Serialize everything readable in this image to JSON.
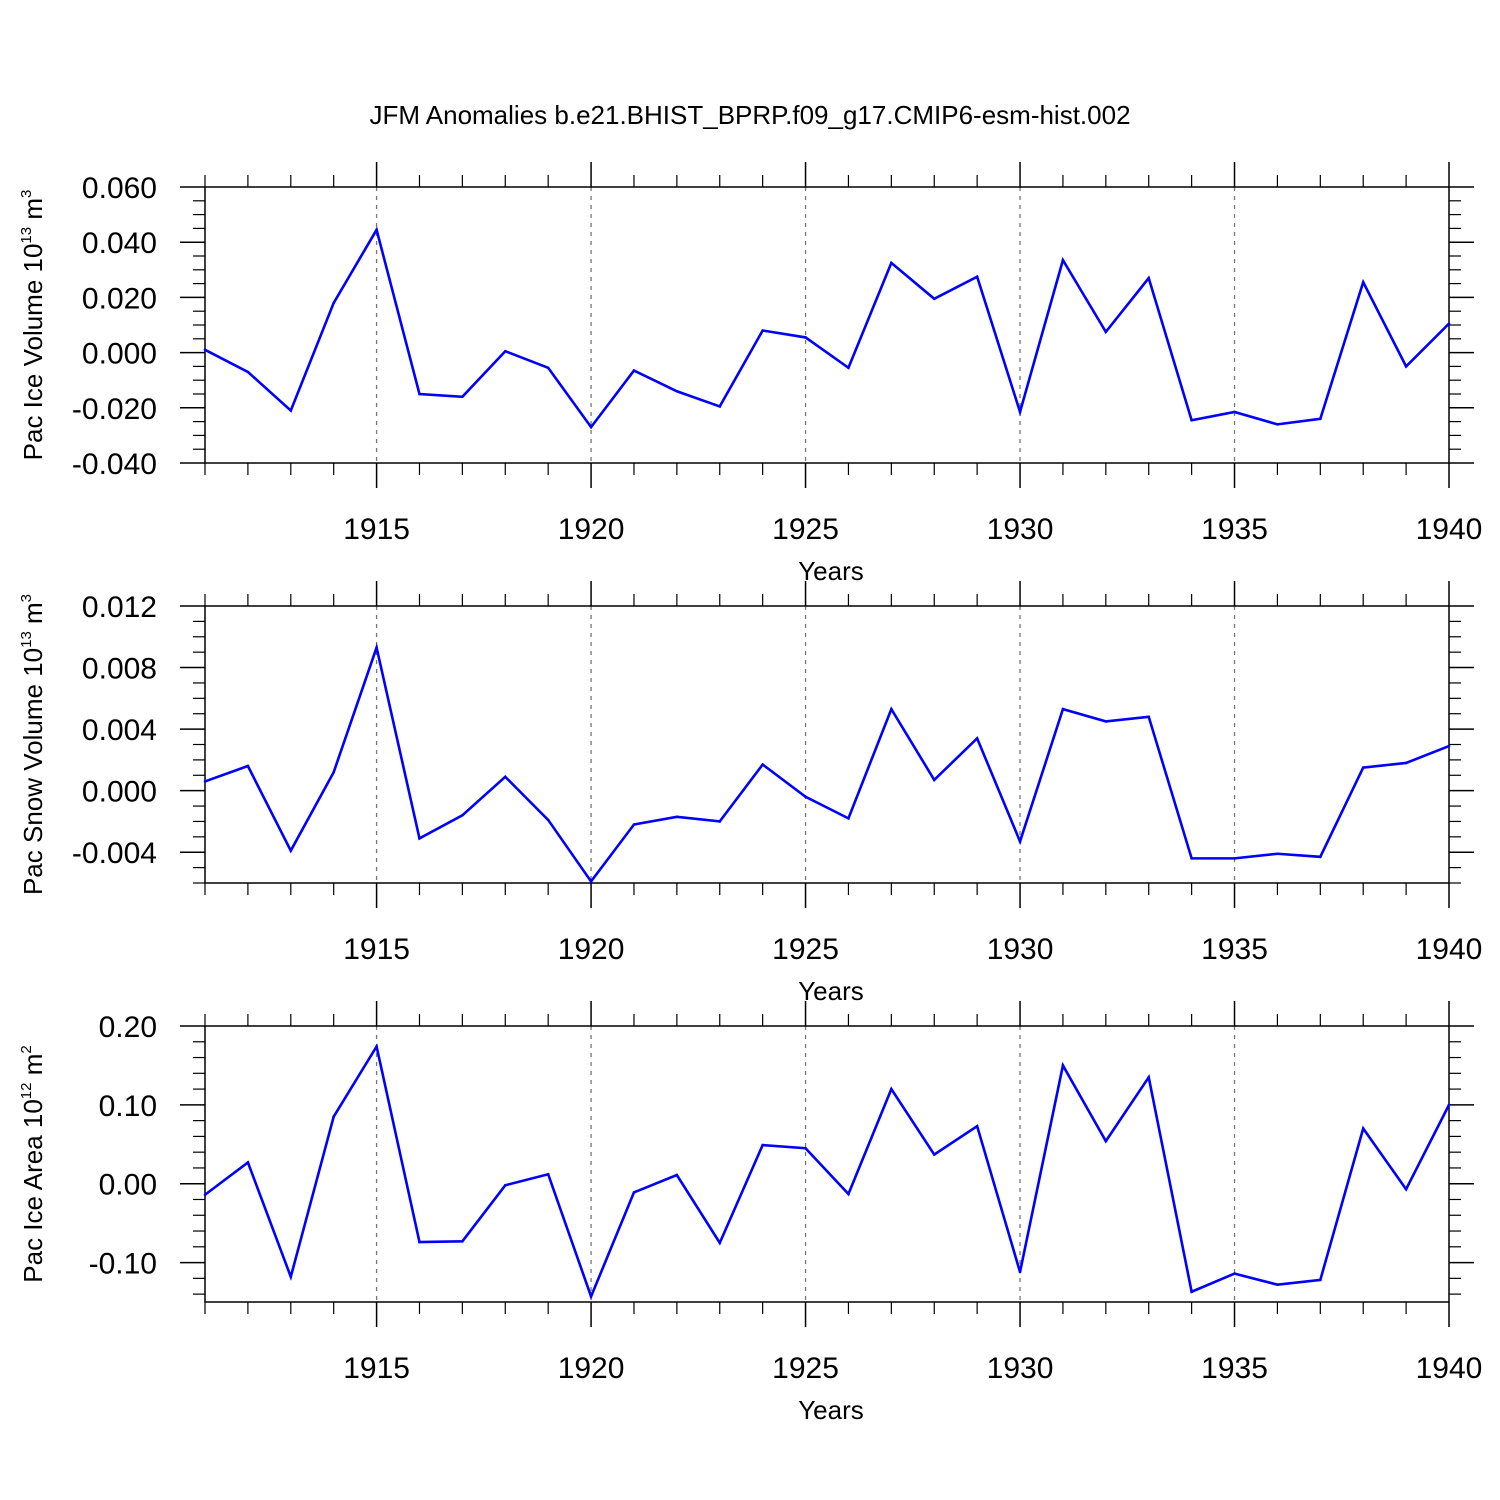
{
  "title": "JFM Anomalies b.e21.BHIST_BPRP.f09_g17.CMIP6-esm-hist.002",
  "colors": {
    "series": "#0000ff",
    "axis": "#000000",
    "grid": "#777777"
  },
  "chart_data": [
    {
      "type": "line",
      "title": "JFM Anomalies b.e21.BHIST_BPRP.f09_g17.CMIP6-esm-hist.002",
      "xlabel": "Years",
      "ylabel": "Pac Ice Volume 10",
      "ylabel_exp": "13",
      "ylabel_unit": "m",
      "ylabel_unit_exp": "3",
      "xlim": [
        1911,
        1940
      ],
      "ylim": [
        -0.04,
        0.06
      ],
      "x_ticks": [
        1915,
        1920,
        1925,
        1930,
        1935,
        1940
      ],
      "x_tick_labels": [
        "1915",
        "1920",
        "1925",
        "1930",
        "1935",
        "1940"
      ],
      "y_ticks": [
        -0.04,
        -0.02,
        0.0,
        0.02,
        0.04,
        0.06
      ],
      "y_tick_labels": [
        "-0.040",
        "-0.020",
        "0.000",
        "0.020",
        "0.040",
        "0.060"
      ],
      "y_minor_step": 0.005,
      "grid": "x-major dashed",
      "series": [
        {
          "name": "Pac Ice Volume",
          "x": [
            1911,
            1912,
            1913,
            1914,
            1915,
            1916,
            1917,
            1918,
            1919,
            1920,
            1921,
            1922,
            1923,
            1924,
            1925,
            1926,
            1927,
            1928,
            1929,
            1930,
            1931,
            1932,
            1933,
            1934,
            1935,
            1936,
            1937,
            1938,
            1939,
            1940
          ],
          "values": [
            0.001,
            -0.007,
            -0.021,
            0.018,
            0.0445,
            -0.015,
            -0.016,
            0.0005,
            -0.0055,
            -0.027,
            -0.0065,
            -0.014,
            -0.0195,
            0.008,
            0.0055,
            -0.0055,
            0.0325,
            0.0195,
            0.0275,
            -0.0215,
            0.0335,
            0.0075,
            0.027,
            -0.0245,
            -0.0215,
            -0.026,
            -0.024,
            0.0255,
            -0.005,
            0.0105
          ]
        }
      ]
    },
    {
      "type": "line",
      "xlabel": "Years",
      "ylabel": "Pac Snow Volume 10",
      "ylabel_exp": "13",
      "ylabel_unit": "m",
      "ylabel_unit_exp": "3",
      "xlim": [
        1911,
        1940
      ],
      "ylim": [
        -0.006,
        0.012
      ],
      "x_ticks": [
        1915,
        1920,
        1925,
        1930,
        1935,
        1940
      ],
      "x_tick_labels": [
        "1915",
        "1920",
        "1925",
        "1930",
        "1935",
        "1940"
      ],
      "y_ticks": [
        -0.004,
        0.0,
        0.004,
        0.008,
        0.012
      ],
      "y_tick_labels": [
        "-0.004",
        "0.000",
        "0.004",
        "0.008",
        "0.012"
      ],
      "y_minor_step": 0.001,
      "grid": "x-major dashed",
      "series": [
        {
          "name": "Pac Snow Volume",
          "x": [
            1911,
            1912,
            1913,
            1914,
            1915,
            1916,
            1917,
            1918,
            1919,
            1920,
            1921,
            1922,
            1923,
            1924,
            1925,
            1926,
            1927,
            1928,
            1929,
            1930,
            1931,
            1932,
            1933,
            1934,
            1935,
            1936,
            1937,
            1938,
            1939,
            1940
          ],
          "values": [
            0.0006,
            0.0016,
            -0.0039,
            0.0012,
            0.0093,
            -0.0031,
            -0.0016,
            0.0009,
            -0.0019,
            -0.0059,
            -0.0022,
            -0.0017,
            -0.002,
            0.0017,
            -0.0004,
            -0.0018,
            0.0053,
            0.0007,
            0.0034,
            -0.0033,
            0.0053,
            0.0045,
            0.0048,
            -0.0044,
            -0.0044,
            -0.0041,
            -0.0043,
            0.0015,
            0.0018,
            0.0029
          ]
        }
      ]
    },
    {
      "type": "line",
      "xlabel": "Years",
      "ylabel": "Pac Ice Area 10",
      "ylabel_exp": "12",
      "ylabel_unit": "m",
      "ylabel_unit_exp": "2",
      "xlim": [
        1911,
        1940
      ],
      "ylim": [
        -0.15,
        0.2
      ],
      "x_ticks": [
        1915,
        1920,
        1925,
        1930,
        1935,
        1940
      ],
      "x_tick_labels": [
        "1915",
        "1920",
        "1925",
        "1930",
        "1935",
        "1940"
      ],
      "y_ticks": [
        -0.1,
        0.0,
        0.1,
        0.2
      ],
      "y_tick_labels": [
        "-0.10",
        "0.00",
        "0.10",
        "0.20"
      ],
      "y_minor_step": 0.02,
      "grid": "x-major dashed",
      "series": [
        {
          "name": "Pac Ice Area",
          "x": [
            1911,
            1912,
            1913,
            1914,
            1915,
            1916,
            1917,
            1918,
            1919,
            1920,
            1921,
            1922,
            1923,
            1924,
            1925,
            1926,
            1927,
            1928,
            1929,
            1930,
            1931,
            1932,
            1933,
            1934,
            1935,
            1936,
            1937,
            1938,
            1939,
            1940
          ],
          "values": [
            -0.014,
            0.027,
            -0.118,
            0.085,
            0.174,
            -0.074,
            -0.073,
            -0.002,
            0.012,
            -0.143,
            -0.011,
            0.011,
            -0.075,
            0.049,
            0.045,
            -0.013,
            0.12,
            0.037,
            0.073,
            -0.112,
            0.15,
            0.054,
            0.135,
            -0.137,
            -0.114,
            -0.128,
            -0.122,
            0.07,
            -0.007,
            0.1
          ]
        }
      ]
    }
  ]
}
